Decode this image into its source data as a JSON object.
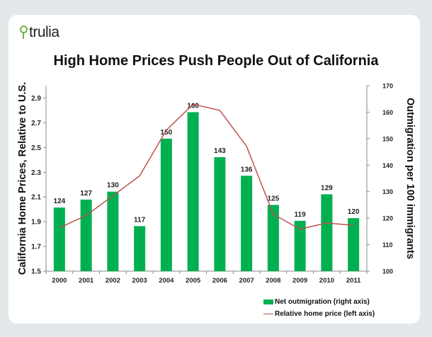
{
  "brand": {
    "name": "trulia",
    "color": "#6bb845"
  },
  "chart_data": {
    "type": "bar+line",
    "title": "High Home Prices Push People Out of California",
    "categories": [
      "2000",
      "2001",
      "2002",
      "2003",
      "2004",
      "2005",
      "2006",
      "2007",
      "2008",
      "2009",
      "2010",
      "2011"
    ],
    "series": [
      {
        "name": "Net outmigration (right axis)",
        "type": "bar",
        "axis": "right",
        "color": "#00b050",
        "values": [
          124,
          127,
          130,
          117,
          150,
          160,
          143,
          136,
          125,
          119,
          129,
          120
        ]
      },
      {
        "name": "Relative home price (left axis)",
        "type": "line",
        "axis": "left",
        "color": "#c0504d",
        "values": [
          1.85,
          1.95,
          2.11,
          2.27,
          2.64,
          2.85,
          2.8,
          2.51,
          1.96,
          1.84,
          1.89,
          1.87
        ]
      }
    ],
    "ylabel": "California Home Prices, Relative to U.S.",
    "ylabel_right": "Outmigration per 100 immigrants",
    "ylim": [
      1.5,
      3.0
    ],
    "yticks": [
      "1.5",
      "1.7",
      "1.9",
      "2.1",
      "2.3",
      "2.5",
      "2.7",
      "2.9"
    ],
    "ylim_right": [
      100,
      170
    ],
    "yticks_right": [
      "100",
      "110",
      "120",
      "130",
      "140",
      "150",
      "160",
      "170"
    ],
    "legend": "bottom-right",
    "grid": false
  }
}
